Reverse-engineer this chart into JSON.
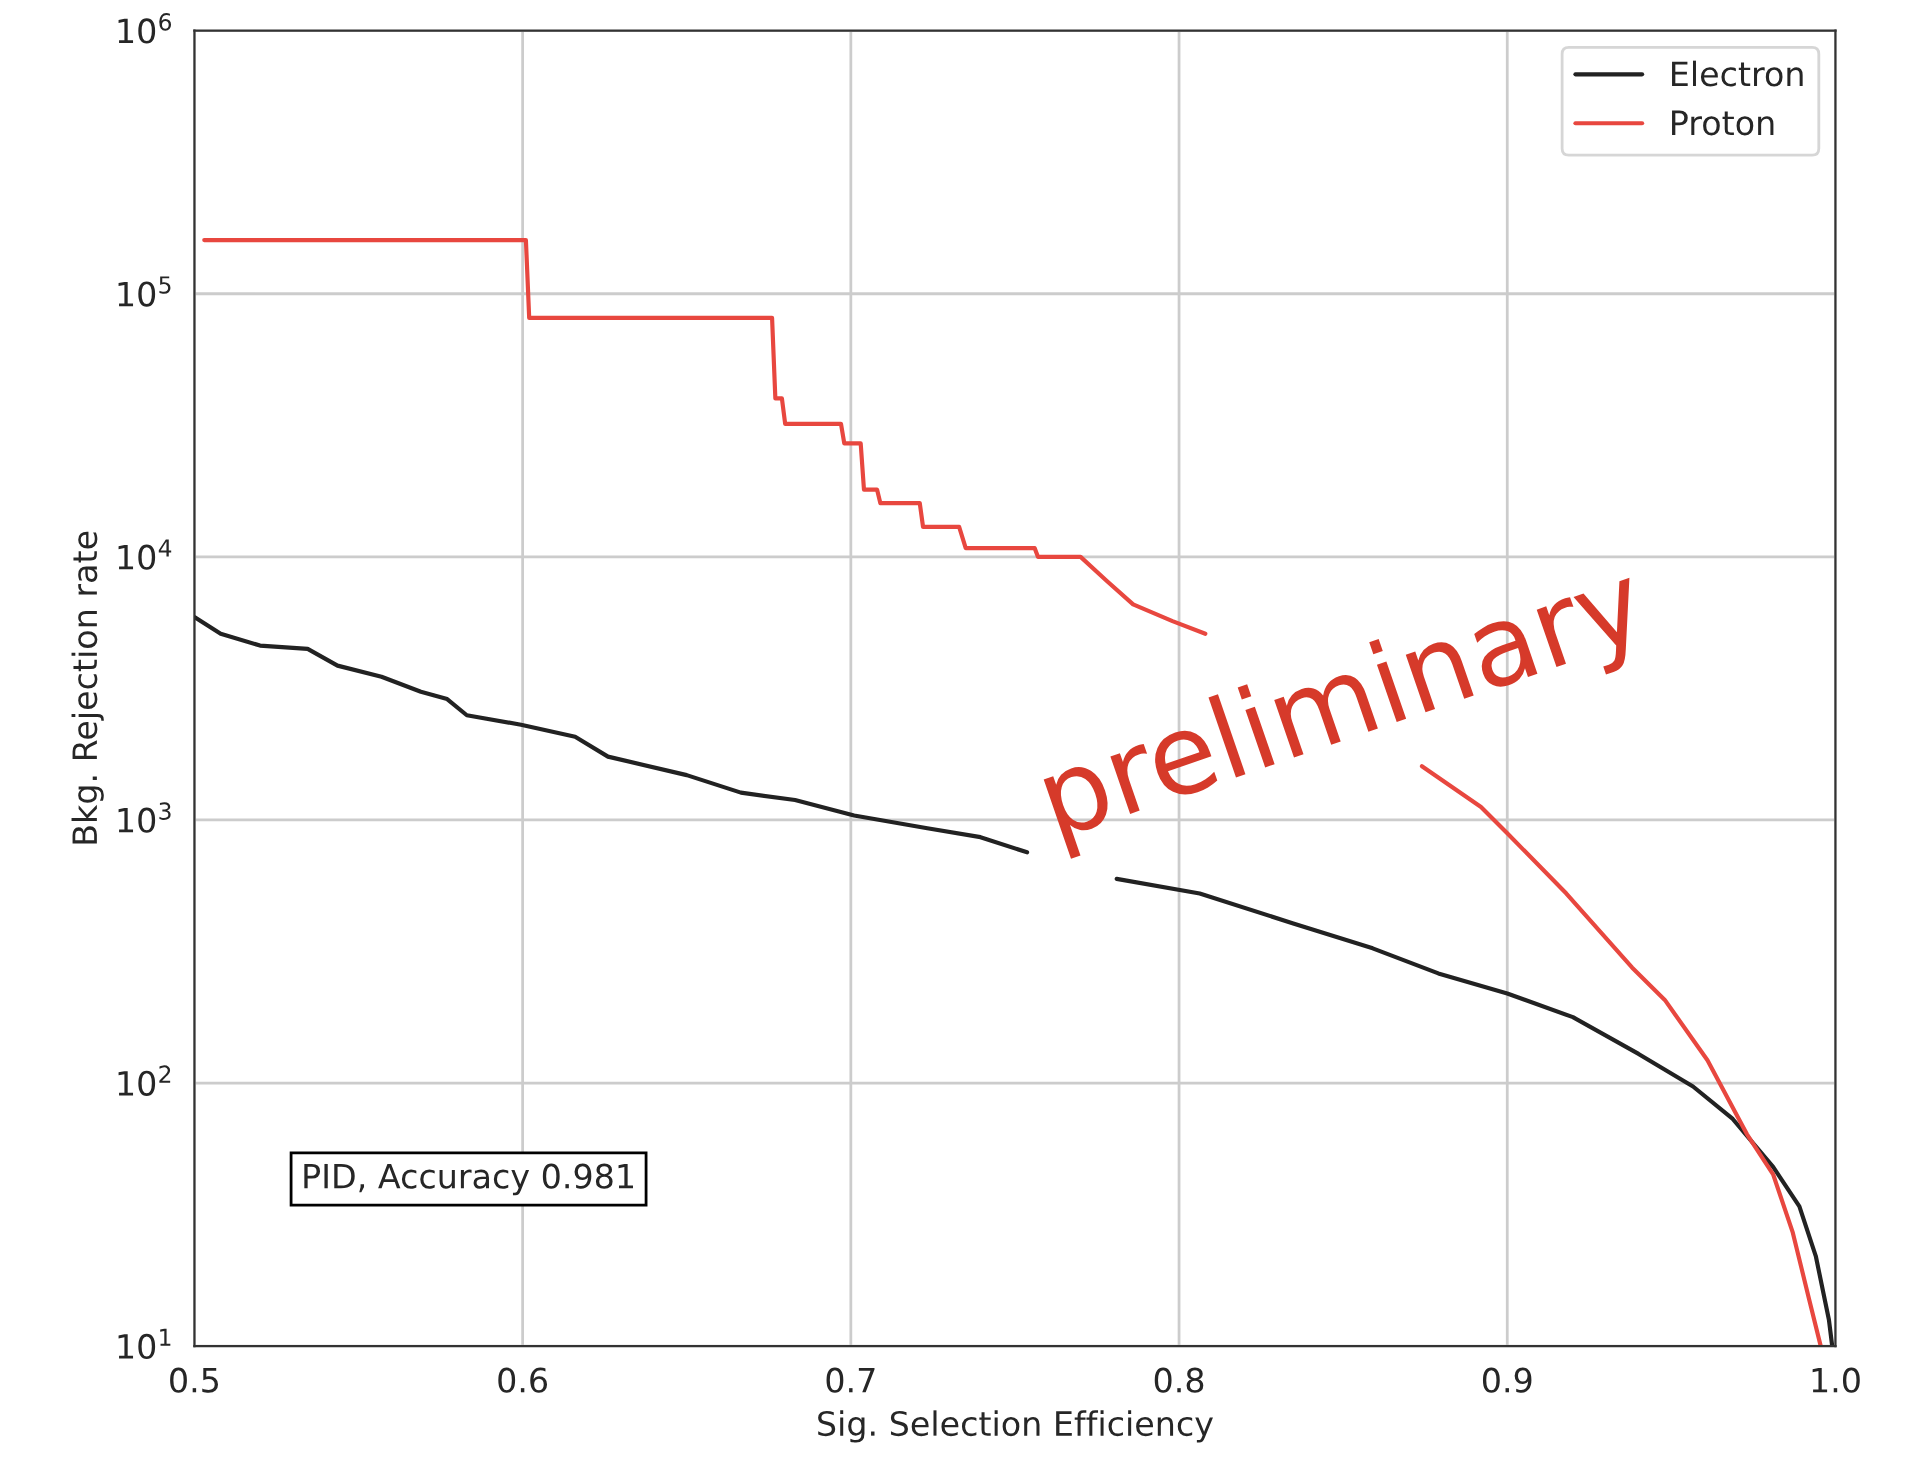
{
  "chart_data": {
    "type": "line",
    "xlabel": "Sig. Selection Efficiency",
    "ylabel": "Bkg. Rejection rate",
    "log": "y",
    "xlim": [
      0.5,
      1.0
    ],
    "xticks": [
      0.5,
      0.6,
      0.7,
      0.8,
      0.9,
      {
        "value": 1.0,
        "label": "1.0"
      }
    ],
    "ylim": [
      10,
      1000000
    ],
    "yticks": [
      {
        "value": 10,
        "label": "10$^{1}$"
      },
      {
        "value": 100,
        "label": "10$^{2}$"
      },
      {
        "value": 1000,
        "label": "10$^{3}$"
      },
      {
        "value": 10000,
        "label": "10$^{4}$"
      },
      {
        "value": 100000,
        "label": "10$^{5}$"
      },
      {
        "value": 1000000,
        "label": "10$^{6}$"
      }
    ],
    "grid": true,
    "legend": "top right",
    "series": [
      {
        "name": "Electron",
        "color": "#222222",
        "x": [
          0.5,
          0.508,
          0.52,
          0.5345,
          0.5436,
          0.557,
          0.569,
          0.577,
          0.583,
          0.5995,
          0.616,
          0.626,
          0.65,
          0.6665,
          0.683,
          0.701,
          0.7233,
          0.7395,
          0.7537,
          0.767,
          0.781,
          0.8063,
          0.8348,
          0.859,
          0.879,
          0.9,
          0.92,
          0.94,
          0.9566,
          0.9687,
          0.981,
          0.989,
          0.994,
          0.998,
          0.999
        ],
        "values": [
          5900,
          5100,
          4600,
          4470,
          3860,
          3500,
          3070,
          2880,
          2500,
          2300,
          2070,
          1740,
          1480,
          1270,
          1190,
          1040,
          930,
          860,
          753,
          null,
          597,
          525,
          404,
          325,
          261,
          219,
          178,
          129,
          97,
          73,
          48,
          34,
          22,
          12.6,
          10
        ]
      },
      {
        "name": "Proton",
        "color": "#e8473f",
        "x": [
          0.503,
          0.601,
          0.602,
          0.676,
          0.677,
          0.679,
          0.68,
          0.697,
          0.698,
          0.703,
          0.704,
          0.708,
          0.709,
          0.721,
          0.722,
          0.733,
          0.735,
          0.756,
          0.757,
          0.77,
          0.778,
          0.786,
          0.798,
          0.808,
          0.84,
          0.874,
          0.892,
          0.9,
          0.918,
          0.938,
          0.948,
          0.961,
          0.973,
          0.981,
          0.987,
          0.992,
          0.9955
        ],
        "values": [
          160000,
          160000,
          81000,
          81000,
          40000,
          40000,
          32000,
          32000,
          27000,
          27000,
          18000,
          18000,
          16000,
          16000,
          13000,
          13000,
          10800,
          10800,
          10000,
          10000,
          8100,
          6600,
          5700,
          5100,
          null,
          1600,
          1120,
          890,
          525,
          275,
          207,
          122,
          64,
          45,
          27,
          15,
          10
        ]
      }
    ],
    "annotations": [
      "PID, Accuracy 0.981",
      "preliminary"
    ]
  }
}
